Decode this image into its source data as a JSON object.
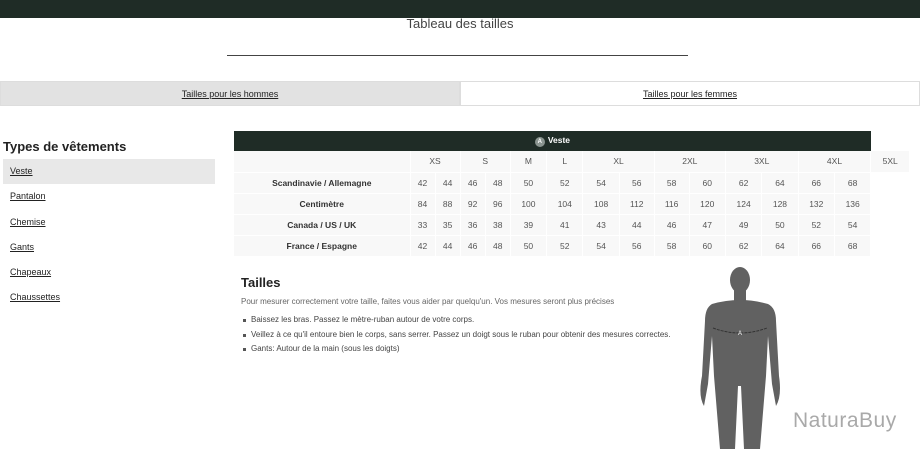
{
  "header": {
    "title": "Tableau des tailles"
  },
  "tabs": [
    {
      "label": "Tailles pour les hommes",
      "active": true
    },
    {
      "label": "Tailles pour les femmes",
      "active": false
    }
  ],
  "sidebar": {
    "heading": "Types de vêtements",
    "items": [
      {
        "label": "Veste",
        "selected": true
      },
      {
        "label": "Pantalon"
      },
      {
        "label": "Chemise"
      },
      {
        "label": "Gants"
      },
      {
        "label": "Chapeaux"
      },
      {
        "label": "Chaussettes"
      }
    ]
  },
  "table": {
    "badge": "A",
    "title": "Veste",
    "sizes": [
      "XS",
      "S",
      "M",
      "L",
      "XL",
      "2XL",
      "3XL",
      "4XL",
      "5XL"
    ],
    "rows": [
      {
        "label": "Scandinavie / Allemagne",
        "values": [
          42,
          44,
          46,
          48,
          50,
          52,
          54,
          56,
          58,
          60,
          62,
          64,
          66,
          68
        ]
      },
      {
        "label": "Centimètre",
        "values": [
          84,
          88,
          92,
          96,
          100,
          104,
          108,
          112,
          116,
          120,
          124,
          128,
          132,
          136
        ]
      },
      {
        "label": "Canada / US / UK",
        "values": [
          33,
          35,
          36,
          38,
          39,
          41,
          43,
          44,
          46,
          47,
          49,
          50,
          52,
          54
        ]
      },
      {
        "label": "France / Espagne",
        "values": [
          42,
          44,
          46,
          48,
          50,
          52,
          54,
          56,
          58,
          60,
          62,
          64,
          66,
          68
        ]
      }
    ]
  },
  "tailles": {
    "heading": "Tailles",
    "intro": "Pour mesurer correctement votre taille, faites vous aider par quelqu'un. Vos mesures seront plus précises",
    "bullets": [
      "Baissez les bras. Passez le mètre-ruban autour de votre corps.",
      "Veillez à ce qu'il entoure bien le corps, sans serrer. Passez un doigt sous le ruban pour obtenir des mesures correctes.",
      "Gants: Autour de la main (sous les doigts)"
    ]
  },
  "figure": {
    "marker": "A"
  },
  "brand": {
    "logo": "NaturaBuy"
  },
  "colors": {
    "dark": "#1f2c26",
    "silhouette": "#616161"
  }
}
